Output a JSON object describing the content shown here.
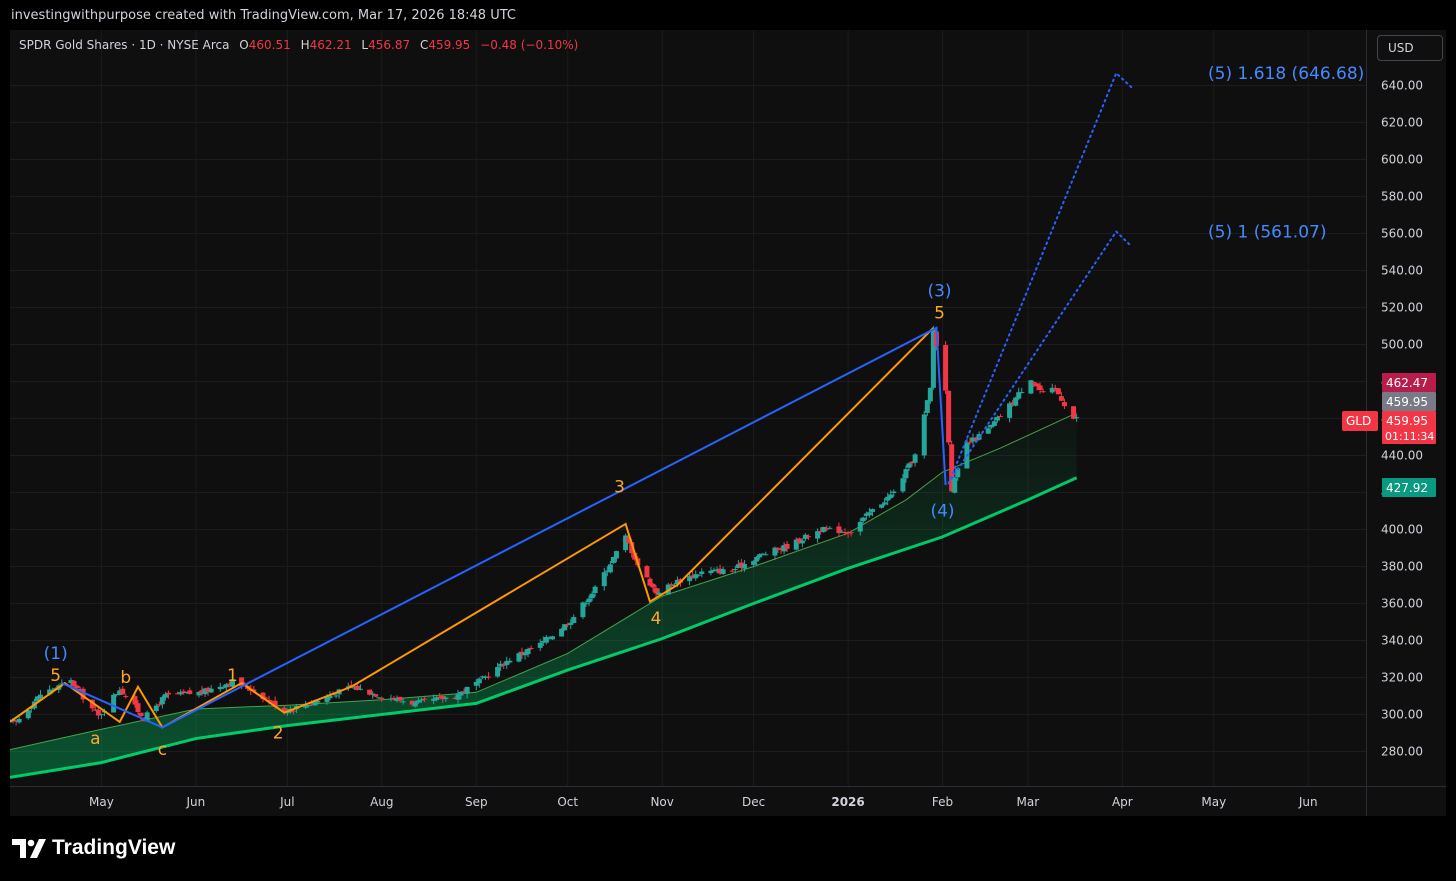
{
  "header": {
    "watermark_text": "investingwithpurpose created with TradingView.com, Mar 17, 2026 18:48 UTC"
  },
  "legend": {
    "name": "SPDR Gold Shares · 1D · NYSE Arca",
    "o_label": "O",
    "o": "460.51",
    "h_label": "H",
    "h": "462.21",
    "l_label": "L",
    "l": "456.87",
    "c_label": "C",
    "c": "459.95",
    "change": "−0.48 (−0.10%)"
  },
  "currency_button": "USD",
  "footer": {
    "brand": "TradingView",
    "logo_icon": "tradingview-logo-icon"
  },
  "colors": {
    "background": "#0f0f0f",
    "up": "#26a69a",
    "down": "#f23645",
    "wave_primary": "#2962ff",
    "wave_minor": "#ff9800",
    "ma_fast": "#4caf50",
    "ma_slow": "#00e676",
    "label_primary": "#448aff",
    "label_minor": "#ffa726"
  },
  "chart_data": {
    "type": "candlestick",
    "symbol": "GLD",
    "y_ticks": [
      "640.00",
      "620.00",
      "600.00",
      "580.00",
      "560.00",
      "540.00",
      "520.00",
      "500.00",
      "480.00",
      "460.00",
      "440.00",
      "420.00",
      "400.00",
      "380.00",
      "360.00",
      "340.00",
      "320.00",
      "300.00",
      "280.00"
    ],
    "x_ticks": [
      {
        "label": "May",
        "date": "2025-05-01"
      },
      {
        "label": "Jun",
        "date": "2025-06-01"
      },
      {
        "label": "Jul",
        "date": "2025-07-01"
      },
      {
        "label": "Aug",
        "date": "2025-08-01"
      },
      {
        "label": "Sep",
        "date": "2025-09-01"
      },
      {
        "label": "Oct",
        "date": "2025-10-01"
      },
      {
        "label": "Nov",
        "date": "2025-11-01"
      },
      {
        "label": "Dec",
        "date": "2025-12-01"
      },
      {
        "label": "2026",
        "date": "2026-01-01",
        "bold": true
      },
      {
        "label": "Feb",
        "date": "2026-02-01"
      },
      {
        "label": "Mar",
        "date": "2026-03-01"
      },
      {
        "label": "Apr",
        "date": "2026-04-01"
      },
      {
        "label": "May",
        "date": "2026-05-01"
      },
      {
        "label": "Jun",
        "date": "2026-06-01"
      }
    ],
    "price_path": [
      [
        "2025-04-03",
        296
      ],
      [
        "2025-04-11",
        311
      ],
      [
        "2025-04-21",
        318
      ],
      [
        "2025-04-30",
        299
      ],
      [
        "2025-05-07",
        314
      ],
      [
        "2025-05-15",
        298
      ],
      [
        "2025-05-22",
        310
      ],
      [
        "2025-06-03",
        312
      ],
      [
        "2025-06-13",
        318
      ],
      [
        "2025-06-20",
        313
      ],
      [
        "2025-06-30",
        302
      ],
      [
        "2025-07-10",
        307
      ],
      [
        "2025-07-22",
        315
      ],
      [
        "2025-08-01",
        310
      ],
      [
        "2025-08-12",
        306
      ],
      [
        "2025-08-25",
        310
      ],
      [
        "2025-09-02",
        318
      ],
      [
        "2025-09-12",
        330
      ],
      [
        "2025-09-22",
        338
      ],
      [
        "2025-10-02",
        351
      ],
      [
        "2025-10-10",
        368
      ],
      [
        "2025-10-20",
        396
      ],
      [
        "2025-10-24",
        381
      ],
      [
        "2025-10-30",
        366
      ],
      [
        "2025-11-06",
        372
      ],
      [
        "2025-11-14",
        377
      ],
      [
        "2025-11-24",
        378
      ],
      [
        "2025-12-03",
        386
      ],
      [
        "2025-12-12",
        391
      ],
      [
        "2025-12-23",
        400
      ],
      [
        "2026-01-02",
        399
      ],
      [
        "2026-01-08",
        409
      ],
      [
        "2026-01-16",
        420
      ],
      [
        "2026-01-23",
        440
      ],
      [
        "2026-01-28",
        476
      ],
      [
        "2026-01-29",
        508
      ],
      [
        "2026-02-02",
        475
      ],
      [
        "2026-02-04",
        422
      ],
      [
        "2026-02-09",
        446
      ],
      [
        "2026-02-16",
        454
      ],
      [
        "2026-02-24",
        469
      ],
      [
        "2026-03-02",
        482
      ],
      [
        "2026-03-06",
        473
      ],
      [
        "2026-03-10",
        476
      ],
      [
        "2026-03-16",
        460
      ]
    ],
    "ma_fast": [
      [
        "2025-04-01",
        281
      ],
      [
        "2025-05-01",
        292
      ],
      [
        "2025-06-01",
        303
      ],
      [
        "2025-07-01",
        305
      ],
      [
        "2025-08-01",
        308
      ],
      [
        "2025-09-01",
        312
      ],
      [
        "2025-10-01",
        333
      ],
      [
        "2025-11-01",
        364
      ],
      [
        "2025-12-01",
        380
      ],
      [
        "2026-01-01",
        398
      ],
      [
        "2026-01-20",
        416
      ],
      [
        "2026-02-01",
        431
      ],
      [
        "2026-02-20",
        444
      ],
      [
        "2026-03-17",
        463
      ]
    ],
    "ma_slow": [
      [
        "2025-04-01",
        266
      ],
      [
        "2025-05-01",
        274
      ],
      [
        "2025-06-01",
        287
      ],
      [
        "2025-07-01",
        294
      ],
      [
        "2025-08-01",
        300
      ],
      [
        "2025-09-01",
        306
      ],
      [
        "2025-10-01",
        324
      ],
      [
        "2025-11-01",
        341
      ],
      [
        "2025-12-01",
        360
      ],
      [
        "2026-01-01",
        379
      ],
      [
        "2026-02-01",
        396
      ],
      [
        "2026-03-01",
        416
      ],
      [
        "2026-03-17",
        428
      ]
    ],
    "primary_wave": [
      [
        "2025-04-18",
        317
      ],
      [
        "2025-05-21",
        293
      ],
      [
        "2026-01-30",
        509
      ],
      [
        "2026-02-02",
        424
      ]
    ],
    "minor_wave": [
      [
        "2025-04-01",
        296
      ],
      [
        "2025-04-19",
        317
      ],
      [
        "2025-05-07",
        296
      ],
      [
        "2025-05-13",
        315
      ],
      [
        "2025-05-21",
        293
      ],
      [
        "2025-06-16",
        317
      ],
      [
        "2025-06-30",
        301
      ],
      [
        "2025-07-22",
        315
      ],
      [
        "2025-10-20",
        403
      ],
      [
        "2025-10-28",
        361
      ],
      [
        "2025-11-06",
        370
      ],
      [
        "2026-01-29",
        509
      ]
    ],
    "projection_1618": [
      [
        "2026-02-03",
        425
      ],
      [
        "2026-03-30",
        646.68
      ],
      [
        "2026-04-04",
        639
      ]
    ],
    "projection_1": [
      [
        "2026-02-03",
        425
      ],
      [
        "2026-03-30",
        561.07
      ],
      [
        "2026-04-04",
        553
      ]
    ],
    "wave_labels": [
      {
        "text": "(1)",
        "date": "2025-04-16",
        "price": 330,
        "role": "primary"
      },
      {
        "text": "5",
        "date": "2025-04-16",
        "price": 318,
        "role": "minor"
      },
      {
        "text": "b",
        "date": "2025-05-09",
        "price": 317,
        "role": "minor"
      },
      {
        "text": "1",
        "date": "2025-06-13",
        "price": 318,
        "role": "minor"
      },
      {
        "text": "a",
        "date": "2025-04-29",
        "price": 284,
        "role": "minor"
      },
      {
        "text": "c",
        "date": "2025-05-21",
        "price": 278,
        "role": "minor"
      },
      {
        "text": "2",
        "date": "2025-06-28",
        "price": 287,
        "role": "minor"
      },
      {
        "text": "3",
        "date": "2025-10-18",
        "price": 420,
        "role": "minor"
      },
      {
        "text": "4",
        "date": "2025-10-30",
        "price": 349,
        "role": "minor"
      },
      {
        "text": "(3)",
        "date": "2026-01-31",
        "price": 526,
        "role": "primary"
      },
      {
        "text": "5",
        "date": "2026-01-31",
        "price": 514,
        "role": "minor"
      },
      {
        "text": "(4)",
        "date": "2026-02-01",
        "price": 407,
        "role": "primary"
      }
    ],
    "projection_labels": [
      {
        "text": "(5) 1.618 (646.68)",
        "price": 646.68
      },
      {
        "text": "(5) 1 (561.07)",
        "price": 561.07
      }
    ],
    "price_labels": [
      {
        "text": "462.47",
        "price": 462.47,
        "bg": "#b71c4a"
      },
      {
        "text": "459.95",
        "price": 459.95,
        "bg": "#787b86"
      },
      {
        "text": "459.95",
        "price": 459.95,
        "bg": "#f23645",
        "countdown": "01:11:34",
        "tag": "GLD"
      },
      {
        "text": "427.92",
        "price": 427.92,
        "bg": "#089981"
      }
    ]
  }
}
